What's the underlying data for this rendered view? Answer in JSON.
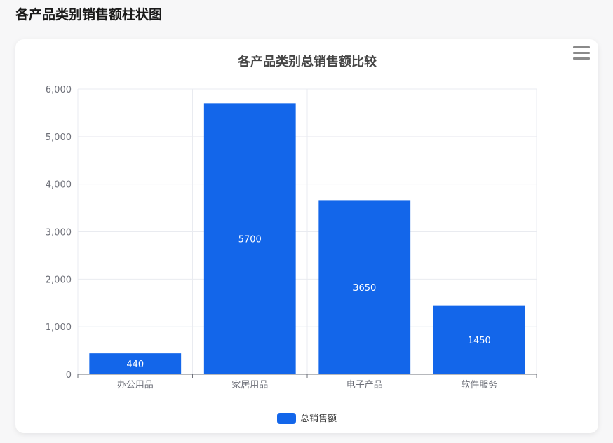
{
  "page": {
    "heading": "各产品类别销售额柱状图"
  },
  "toolbar": {
    "menu_icon": "hamburger-menu-icon"
  },
  "colors": {
    "bar": "#1366ea",
    "axis": "#6e7079",
    "grid": "#e9ebf0",
    "title": "#464646"
  },
  "chart_data": {
    "type": "bar",
    "title": "各产品类别总销售额比较",
    "categories": [
      "办公用品",
      "家居用品",
      "电子产品",
      "软件服务"
    ],
    "series": [
      {
        "name": "总销售额",
        "values": [
          440,
          5700,
          3650,
          1450
        ]
      }
    ],
    "yticks": [
      "0",
      "1,000",
      "2,000",
      "3,000",
      "4,000",
      "5,000",
      "6,000"
    ],
    "ylim": [
      0,
      6000
    ],
    "grid": true,
    "legend": "bottom-center",
    "data_labels": "inside"
  }
}
